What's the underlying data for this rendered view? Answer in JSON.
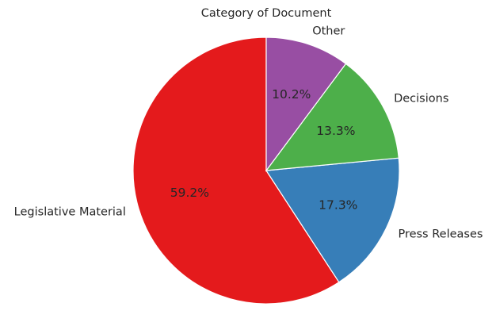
{
  "chart_data": {
    "type": "pie",
    "title": "Category of Document",
    "categories": [
      "Legislative Material",
      "Press Releases",
      "Decisions",
      "Other"
    ],
    "values": [
      59.2,
      17.3,
      13.3,
      10.2
    ],
    "value_labels": [
      "59.2%",
      "17.3%",
      "13.3%",
      "10.2%"
    ],
    "colors": [
      "#e41a1c",
      "#377eb8",
      "#4daf4a",
      "#984ea3"
    ]
  }
}
